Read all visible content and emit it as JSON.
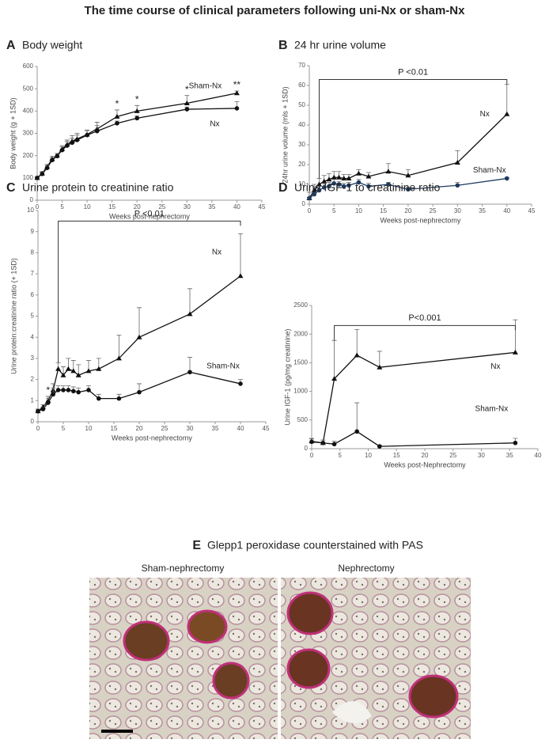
{
  "title": "The time course of clinical parameters following uni-Nx or sham-Nx",
  "chart_data": [
    {
      "type": "line",
      "panel": "A",
      "title": "Body weight",
      "x_label": "Weeks post-nephrectomy",
      "y_label": "Body weight (g + 1SD)",
      "x": [
        0,
        1,
        2,
        3,
        4,
        5,
        6,
        7,
        8,
        10,
        12,
        16,
        20,
        30,
        40
      ],
      "xlim": [
        0,
        45
      ],
      "xticks": [
        0,
        5,
        10,
        15,
        20,
        25,
        30,
        35,
        40,
        45
      ],
      "ylim": [
        0,
        600
      ],
      "yticks": [
        0,
        100,
        200,
        300,
        400,
        500,
        600
      ],
      "series": [
        {
          "name": "Sham-Nx",
          "color": "#111111",
          "marker": "triangle",
          "values": [
            100,
            120,
            150,
            185,
            200,
            230,
            250,
            265,
            275,
            295,
            320,
            375,
            400,
            435,
            480
          ],
          "errors": [
            5,
            8,
            10,
            12,
            10,
            15,
            20,
            25,
            25,
            20,
            30,
            30,
            25,
            35,
            10
          ]
        },
        {
          "name": "Nx",
          "color": "#111111",
          "marker": "circle",
          "values": [
            100,
            118,
            145,
            180,
            198,
            225,
            245,
            258,
            270,
            292,
            310,
            345,
            368,
            408,
            412
          ],
          "errors": [
            5,
            8,
            10,
            10,
            12,
            15,
            18,
            20,
            22,
            20,
            25,
            10,
            10,
            10,
            30
          ]
        }
      ],
      "annotations": [
        {
          "text": "*",
          "x": 16
        },
        {
          "text": "*",
          "x": 20
        },
        {
          "text": "*",
          "x": 30
        },
        {
          "text": "**",
          "x": 40
        }
      ]
    },
    {
      "type": "line",
      "panel": "B",
      "title": "24 hr urine volume",
      "x_label": "Weeks post-nephrectomy",
      "y_label": "24hr urine volume (mls + 1SD)",
      "x": [
        0,
        1,
        2,
        3,
        4,
        5,
        6,
        7,
        8,
        10,
        12,
        16,
        20,
        30,
        40
      ],
      "xlim": [
        0,
        45
      ],
      "xticks": [
        0,
        5,
        10,
        15,
        20,
        25,
        30,
        35,
        40,
        45
      ],
      "ylim": [
        0,
        70
      ],
      "yticks": [
        0,
        10,
        20,
        30,
        40,
        50,
        60,
        70
      ],
      "series": [
        {
          "name": "Nx",
          "color": "#111111",
          "marker": "triangle",
          "values": [
            3,
            7,
            10,
            11.5,
            12.5,
            13.5,
            13.5,
            13,
            13,
            15.5,
            14,
            16.5,
            14.5,
            21,
            45.5
          ],
          "errors": [
            3,
            3,
            3,
            3,
            3,
            3,
            3,
            2,
            2,
            2,
            2,
            4,
            3,
            6,
            15
          ]
        },
        {
          "name": "Sham-Nx",
          "color": "#1f3a5f",
          "marker": "circle",
          "values": [
            3,
            5,
            7,
            8.5,
            9,
            10.5,
            10,
            9,
            9.5,
            11,
            9,
            10,
            7.5,
            9.5,
            13
          ],
          "errors": [
            0.5,
            1,
            2,
            2,
            2,
            2,
            1.5,
            1.5,
            1.5,
            1.5,
            1.5,
            1,
            1,
            1.5,
            0.5
          ]
        }
      ],
      "bracket": {
        "label": "P <0.01",
        "from": 2,
        "to": 40,
        "y": 63
      }
    },
    {
      "type": "line",
      "panel": "C",
      "title": "Urine protein to creatinine ratio",
      "x_label": "Weeks post-nephrectomy",
      "y_label": "Urine protein:creatinine ratio (+ 1SD)",
      "x": [
        0,
        1,
        2,
        3,
        4,
        5,
        6,
        7,
        8,
        10,
        12,
        16,
        20,
        30,
        40
      ],
      "xlim": [
        0,
        45
      ],
      "xticks": [
        0,
        5,
        10,
        15,
        20,
        25,
        30,
        35,
        40,
        45
      ],
      "ylim": [
        0,
        10
      ],
      "yticks": [
        0,
        1,
        2,
        3,
        4,
        5,
        6,
        7,
        8,
        9,
        10
      ],
      "series": [
        {
          "name": "Nx",
          "color": "#111111",
          "marker": "triangle",
          "values": [
            0.5,
            0.7,
            1.0,
            1.5,
            2.5,
            2.2,
            2.5,
            2.4,
            2.2,
            2.4,
            2.5,
            3.0,
            4.0,
            5.1,
            6.9
          ],
          "errors": [
            0.1,
            0.1,
            0.2,
            0.3,
            0.3,
            0.4,
            0.5,
            0.5,
            0.5,
            0.5,
            0.5,
            1.1,
            1.4,
            1.2,
            2.0
          ]
        },
        {
          "name": "Sham-Nx",
          "color": "#111111",
          "marker": "circle",
          "values": [
            0.5,
            0.6,
            0.9,
            1.3,
            1.5,
            1.5,
            1.5,
            1.45,
            1.4,
            1.5,
            1.1,
            1.1,
            1.4,
            2.35,
            1.8
          ],
          "errors": [
            0.1,
            0.1,
            0.2,
            0.3,
            0.2,
            0.2,
            0.2,
            0.2,
            0.2,
            0.2,
            0.2,
            0.2,
            0.4,
            0.7,
            0.2
          ]
        }
      ],
      "annotations": [
        {
          "text": "*",
          "x": 2
        }
      ],
      "bracket": {
        "label": "P <0.01",
        "from": 4,
        "to": 40,
        "y": 9.5
      }
    },
    {
      "type": "line",
      "panel": "D",
      "title": "Urine IGF-1 to creatinine ratio",
      "x_label": "Weeks post-Nephrectomy",
      "y_label": "Urine IGF-1 (pg/mg creatinine)",
      "x": [
        0,
        2,
        4,
        8,
        12,
        36
      ],
      "xlim": [
        0,
        40
      ],
      "xticks": [
        0,
        5,
        10,
        15,
        20,
        25,
        30,
        35,
        40
      ],
      "ylim": [
        0,
        2500
      ],
      "yticks": [
        0,
        500,
        1000,
        1500,
        2000,
        2500
      ],
      "series": [
        {
          "name": "Nx",
          "color": "#111111",
          "marker": "triangle",
          "values": [
            130,
            100,
            1220,
            1630,
            1420,
            1680
          ],
          "errors": [
            50,
            50,
            670,
            450,
            280,
            570
          ]
        },
        {
          "name": "Sham-Nx",
          "color": "#111111",
          "marker": "circle",
          "values": [
            120,
            100,
            80,
            300,
            40,
            100
          ],
          "errors": [
            50,
            50,
            50,
            500,
            20,
            80
          ]
        }
      ],
      "bracket": {
        "label": "P<0.001",
        "from": 4,
        "to": 36,
        "y": 2150
      }
    }
  ],
  "panel_e": {
    "panel": "E",
    "title": "Glepp1 peroxidase counterstained with PAS",
    "left_label": "Sham-nephrectomy",
    "right_label": "Nephrectomy"
  }
}
